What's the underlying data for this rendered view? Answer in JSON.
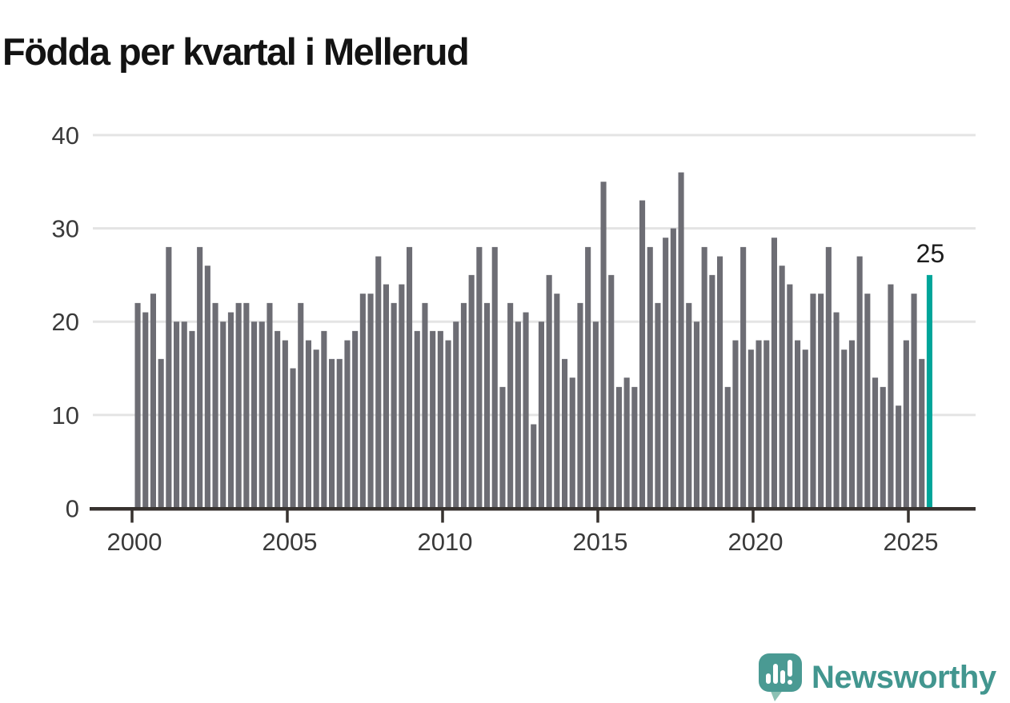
{
  "title": "Födda per kvartal i Mellerud",
  "annotation": {
    "last_value_label": "25"
  },
  "logo": {
    "text": "Newsworthy",
    "icon": "newsworthy-speech-bubble-chart-icon"
  },
  "colors": {
    "bar": "#6d6d74",
    "highlight": "#00a59a",
    "grid": "#e4e4e4",
    "axis": "#37322f",
    "tick_label": "#3a3a3a",
    "value_label": "#1c1c1c",
    "title": "#131313",
    "logo_teal": "#42968f",
    "logo_bubble": "#4a9a93",
    "logo_tail": "#8cc1b4",
    "background": "#ffffff"
  },
  "chart_data": {
    "type": "bar",
    "title": "Födda per kvartal i Mellerud",
    "series_name": "Födda",
    "frequency": "quarterly",
    "start": "2000 Q1",
    "end": "2025 Q3",
    "values": [
      22,
      21,
      23,
      16,
      28,
      20,
      20,
      19,
      28,
      26,
      22,
      20,
      21,
      22,
      22,
      20,
      20,
      22,
      19,
      18,
      15,
      22,
      18,
      17,
      19,
      16,
      16,
      18,
      19,
      23,
      23,
      27,
      24,
      22,
      24,
      28,
      19,
      22,
      19,
      19,
      18,
      20,
      22,
      25,
      28,
      22,
      28,
      13,
      22,
      20,
      21,
      9,
      20,
      25,
      23,
      16,
      14,
      22,
      28,
      20,
      35,
      25,
      13,
      14,
      13,
      33,
      28,
      22,
      29,
      30,
      36,
      22,
      20,
      28,
      25,
      27,
      13,
      18,
      28,
      17,
      18,
      18,
      29,
      26,
      24,
      18,
      17,
      23,
      23,
      28,
      21,
      17,
      18,
      27,
      23,
      14,
      13,
      24,
      11,
      18,
      23,
      16,
      25
    ],
    "highlight_last": true,
    "highlight_value": 25,
    "xlabel": "",
    "ylabel": "",
    "ylim": [
      0,
      40
    ],
    "yticks": [
      0,
      10,
      20,
      30,
      40
    ],
    "xticks": [
      2000,
      2005,
      2010,
      2015,
      2020,
      2025
    ],
    "grid": "horizontal",
    "legend": "none"
  }
}
